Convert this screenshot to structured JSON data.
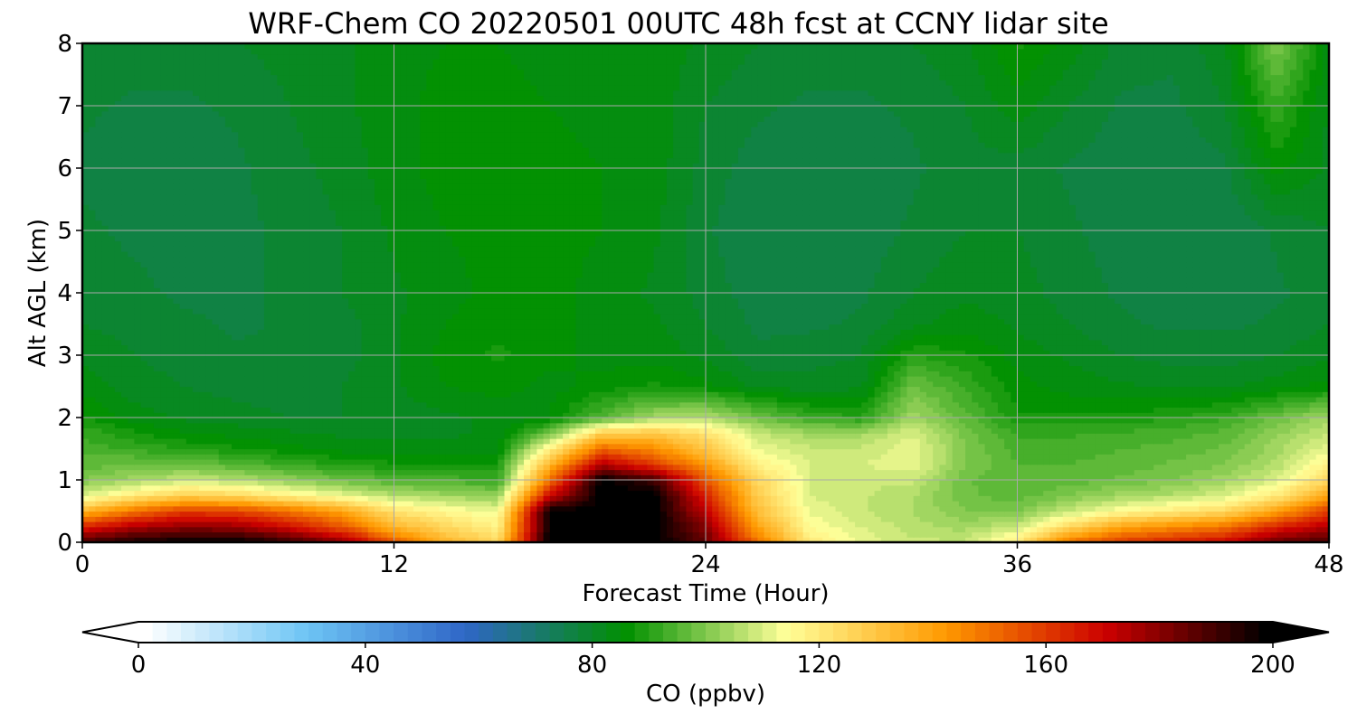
{
  "chart_data": {
    "type": "heatmap",
    "title": "WRF-Chem CO  20220501 00UTC 48h fcst at CCNY lidar site",
    "xlabel": "Forecast Time (Hour)",
    "ylabel": "Alt AGL (km)",
    "xlim": [
      0,
      48
    ],
    "ylim": [
      0,
      8
    ],
    "xticks": [
      "0",
      "12",
      "24",
      "36",
      "48"
    ],
    "yticks": [
      "0",
      "1",
      "2",
      "3",
      "4",
      "5",
      "6",
      "7",
      "8"
    ],
    "grid": true,
    "x": [
      0,
      2,
      4,
      6,
      8,
      10,
      12,
      14,
      16,
      18,
      20,
      22,
      24,
      26,
      28,
      30,
      32,
      34,
      36,
      38,
      40,
      42,
      44,
      46,
      48
    ],
    "y": [
      0,
      0.25,
      0.5,
      0.75,
      1.0,
      1.25,
      1.5,
      1.75,
      2.0,
      2.5,
      3.0,
      3.5,
      4.0,
      5.0,
      6.0,
      7.0,
      8.0
    ],
    "values": [
      [
        190,
        196,
        200,
        200,
        192,
        180,
        155,
        135,
        125,
        200,
        200,
        200,
        185,
        150,
        120,
        112,
        108,
        108,
        120,
        150,
        160,
        165,
        170,
        185,
        190
      ],
      [
        165,
        175,
        180,
        178,
        168,
        155,
        135,
        125,
        118,
        200,
        200,
        200,
        180,
        140,
        115,
        110,
        106,
        104,
        108,
        125,
        140,
        145,
        150,
        165,
        175
      ],
      [
        135,
        150,
        160,
        158,
        150,
        140,
        122,
        116,
        112,
        200,
        200,
        200,
        172,
        132,
        112,
        108,
        105,
        100,
        100,
        108,
        115,
        120,
        125,
        140,
        160
      ],
      [
        110,
        120,
        128,
        125,
        118,
        112,
        106,
        104,
        102,
        170,
        200,
        200,
        165,
        128,
        110,
        108,
        105,
        98,
        96,
        100,
        104,
        106,
        110,
        120,
        140
      ],
      [
        100,
        104,
        108,
        106,
        102,
        98,
        95,
        94,
        92,
        150,
        200,
        190,
        155,
        125,
        110,
        108,
        108,
        98,
        95,
        96,
        98,
        100,
        104,
        110,
        125
      ],
      [
        96,
        98,
        98,
        95,
        92,
        90,
        88,
        88,
        88,
        135,
        175,
        160,
        142,
        118,
        110,
        110,
        112,
        100,
        95,
        95,
        96,
        98,
        100,
        106,
        118
      ],
      [
        94,
        92,
        90,
        88,
        86,
        84,
        84,
        84,
        84,
        118,
        152,
        145,
        130,
        112,
        108,
        108,
        112,
        100,
        94,
        94,
        95,
        96,
        98,
        104,
        112
      ],
      [
        92,
        88,
        85,
        84,
        83,
        82,
        82,
        82,
        83,
        98,
        128,
        130,
        122,
        108,
        104,
        104,
        110,
        99,
        92,
        92,
        93,
        94,
        96,
        102,
        108
      ],
      [
        88,
        84,
        82,
        81,
        80,
        80,
        81,
        82,
        83,
        85,
        95,
        104,
        106,
        98,
        92,
        90,
        104,
        96,
        88,
        88,
        88,
        90,
        92,
        98,
        104
      ],
      [
        84,
        81,
        80,
        79,
        79,
        80,
        82,
        85,
        86,
        84,
        86,
        88,
        86,
        82,
        81,
        82,
        98,
        92,
        86,
        84,
        83,
        82,
        82,
        84,
        86
      ],
      [
        82,
        80,
        79,
        78,
        78,
        79,
        82,
        86,
        88,
        86,
        84,
        84,
        82,
        78,
        79,
        80,
        90,
        88,
        84,
        82,
        80,
        79,
        79,
        80,
        82
      ],
      [
        80,
        79,
        78,
        77,
        78,
        79,
        82,
        85,
        87,
        86,
        84,
        83,
        80,
        77,
        77,
        78,
        82,
        84,
        82,
        80,
        78,
        77,
        77,
        78,
        80
      ],
      [
        79,
        78,
        77,
        77,
        78,
        80,
        82,
        84,
        86,
        86,
        84,
        82,
        79,
        76,
        76,
        77,
        80,
        82,
        81,
        79,
        77,
        76,
        76,
        77,
        79
      ],
      [
        78,
        77,
        77,
        77,
        78,
        80,
        83,
        85,
        86,
        86,
        85,
        83,
        78,
        75,
        75,
        76,
        78,
        80,
        80,
        78,
        76,
        75,
        75,
        78,
        80
      ],
      [
        77,
        76,
        76,
        77,
        79,
        81,
        84,
        86,
        87,
        86,
        85,
        84,
        79,
        76,
        75,
        76,
        77,
        79,
        79,
        77,
        76,
        75,
        77,
        86,
        82
      ],
      [
        78,
        77,
        77,
        78,
        80,
        82,
        84,
        86,
        86,
        85,
        84,
        84,
        80,
        78,
        77,
        77,
        78,
        80,
        84,
        80,
        77,
        77,
        80,
        92,
        82
      ],
      [
        80,
        79,
        79,
        80,
        81,
        82,
        84,
        85,
        85,
        84,
        83,
        84,
        82,
        80,
        79,
        79,
        80,
        82,
        88,
        84,
        79,
        78,
        82,
        100,
        84
      ]
    ],
    "colorbar": {
      "label": "CO  (ppbv)",
      "min": 0,
      "max": 200,
      "ticks": [
        "0",
        "40",
        "80",
        "120",
        "160",
        "200"
      ],
      "extend": "both",
      "colors": [
        "#ffffff",
        "#6ec5f5",
        "#2f66c7",
        "#009000",
        "#ffff99",
        "#ff9900",
        "#cc0000",
        "#000000"
      ]
    }
  }
}
